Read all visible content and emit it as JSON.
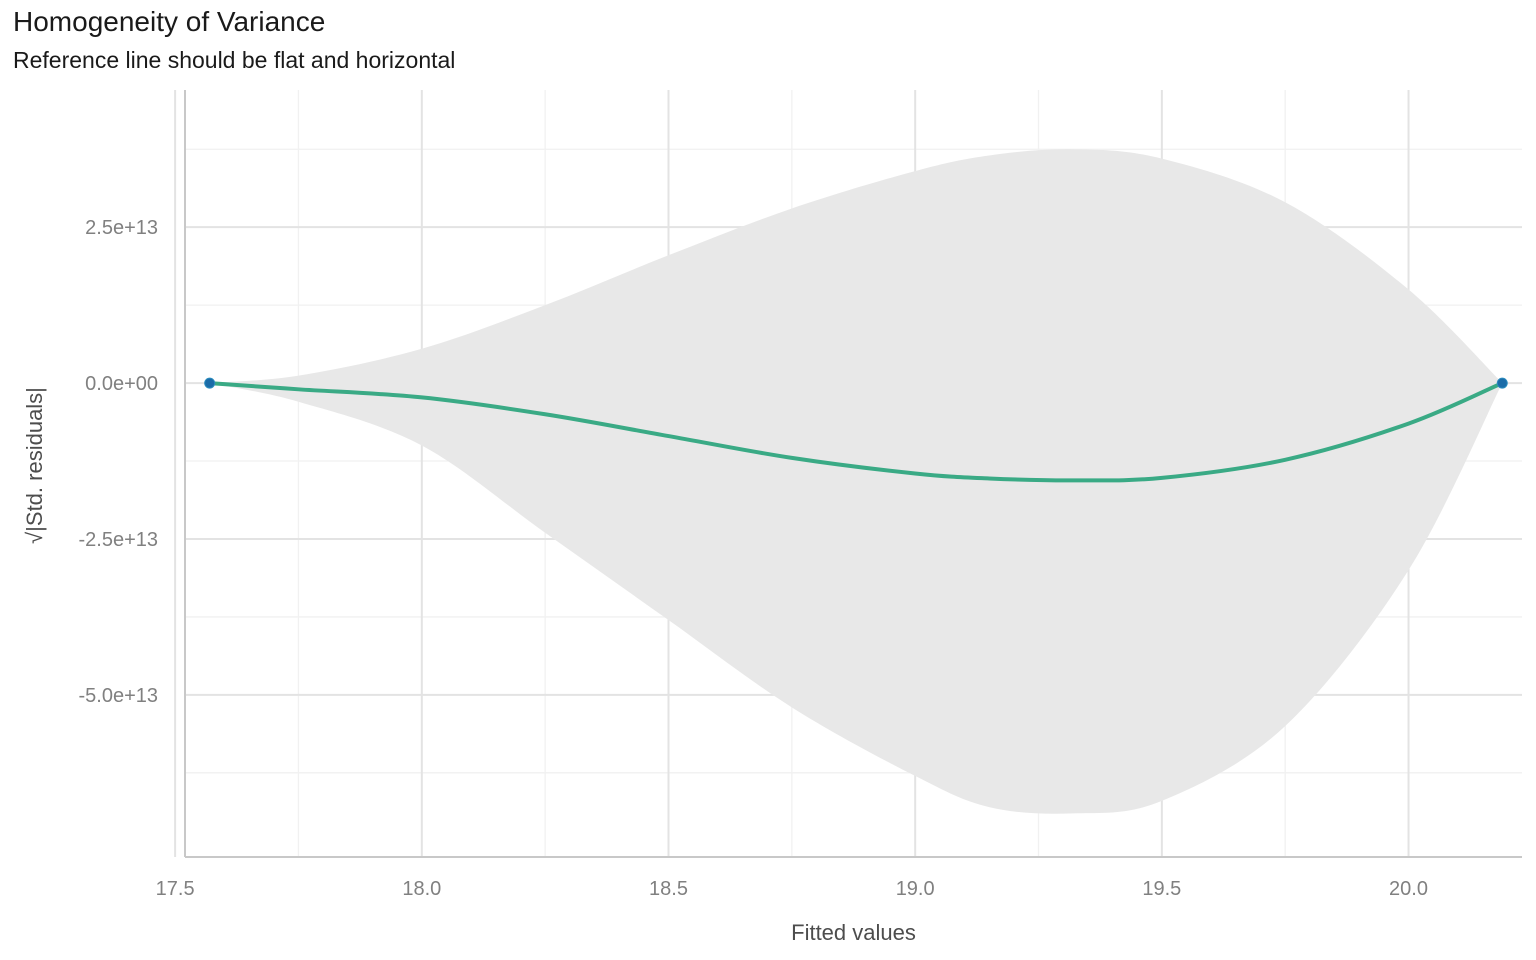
{
  "title": "Homogeneity of Variance",
  "subtitle": "Reference line should be flat and horizontal",
  "chart_data": {
    "type": "line",
    "xlabel": "Fitted values",
    "ylabel": "√|Std. residuals|",
    "xlim": [
      17.52,
      20.23
    ],
    "ylim": [
      -76000000000000.0,
      47000000000000.0
    ],
    "x_ticks": [
      17.5,
      18.0,
      18.5,
      19.0,
      19.5,
      20.0
    ],
    "x_tick_labels": [
      "17.5",
      "18.0",
      "18.5",
      "19.0",
      "19.5",
      "20.0"
    ],
    "y_ticks": [
      -50000000000000.0,
      -25000000000000.0,
      0,
      25000000000000.0
    ],
    "y_tick_labels": [
      "-5.0e+13",
      "-2.5e+13",
      "0.0e+00",
      "2.5e+13"
    ],
    "grid": true,
    "colors": {
      "line": "#3aaa85",
      "points": "#1b6ca8",
      "ribbon": "#e8e8e8",
      "grid_major": "#e3e3e3",
      "grid_minor": "#f1f1f1",
      "axis": "#c8c8c8"
    },
    "points": [
      {
        "x": 17.57,
        "y": 0
      },
      {
        "x": 20.19,
        "y": 0
      }
    ],
    "smooth_line": {
      "x": [
        17.57,
        17.75,
        18.0,
        18.25,
        18.5,
        18.75,
        19.0,
        19.15,
        19.32,
        19.5,
        19.75,
        20.0,
        20.19
      ],
      "y": [
        0,
        -1000000000000.0,
        -2300000000000.0,
        -5000000000000.0,
        -8500000000000.0,
        -12000000000000.0,
        -14500000000000.0,
        -15300000000000.0,
        -15600000000000.0,
        -15200000000000.0,
        -12300000000000.0,
        -6500000000000.0,
        0
      ]
    },
    "ribbon": {
      "x": [
        17.57,
        17.75,
        18.0,
        18.25,
        18.5,
        18.75,
        19.0,
        19.15,
        19.32,
        19.5,
        19.75,
        20.0,
        20.19
      ],
      "upper": [
        0,
        1200000000000.0,
        5500000000000.0,
        12500000000000.0,
        20500000000000.0,
        28000000000000.0,
        34000000000000.0,
        36500000000000.0,
        37500000000000.0,
        36000000000000.0,
        29000000000000.0,
        15000000000000.0,
        0
      ],
      "lower": [
        0,
        -3000000000000.0,
        -10000000000000.0,
        -24000000000000.0,
        -38000000000000.0,
        -52000000000000.0,
        -63000000000000.0,
        -68000000000000.0,
        -69000000000000.0,
        -67000000000000.0,
        -55000000000000.0,
        -30000000000000.0,
        0
      ]
    }
  }
}
